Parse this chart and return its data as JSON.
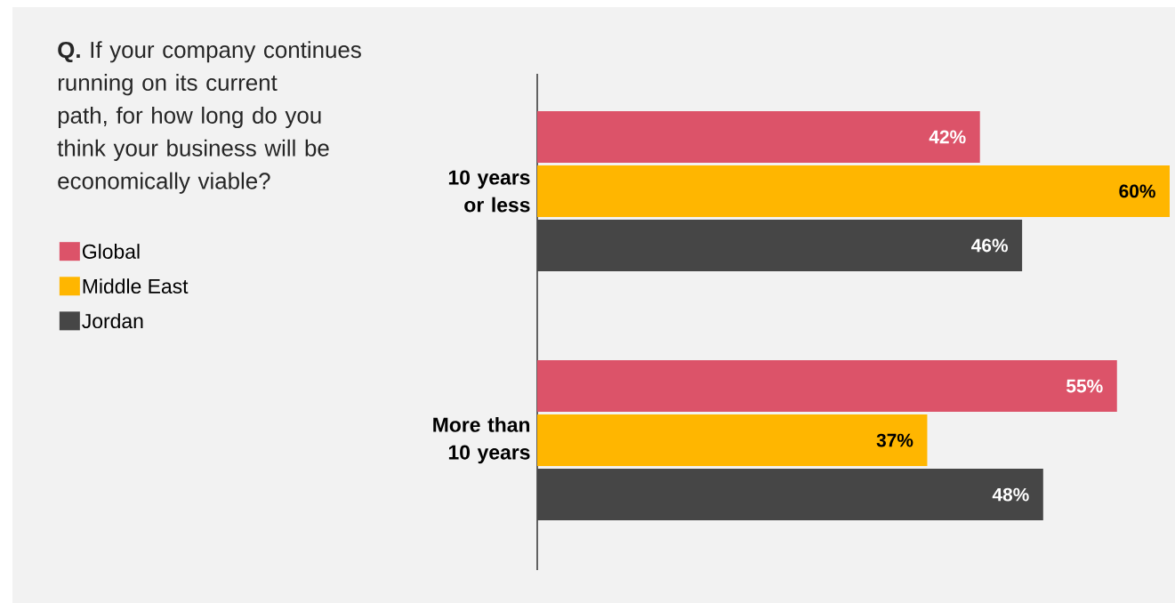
{
  "chart_data": {
    "type": "bar",
    "orientation": "horizontal",
    "title": "**Q.** If your company continues running on its current path, for how long do you think your business will be economically viable?",
    "categories": [
      "10 years or less",
      "More than 10 years"
    ],
    "series": [
      {
        "name": "Global",
        "color": "#dc5369",
        "values": [
          42,
          55
        ],
        "value_labels": [
          "42%",
          "55%"
        ]
      },
      {
        "name": "Middle East",
        "color": "#ffb600",
        "values": [
          60,
          37
        ],
        "value_labels": [
          "60%",
          "37%"
        ]
      },
      {
        "name": "Jordan",
        "color": "#464646",
        "values": [
          46,
          48
        ],
        "value_labels": [
          "46%",
          "48%"
        ]
      }
    ],
    "legend": "left"
  }
}
